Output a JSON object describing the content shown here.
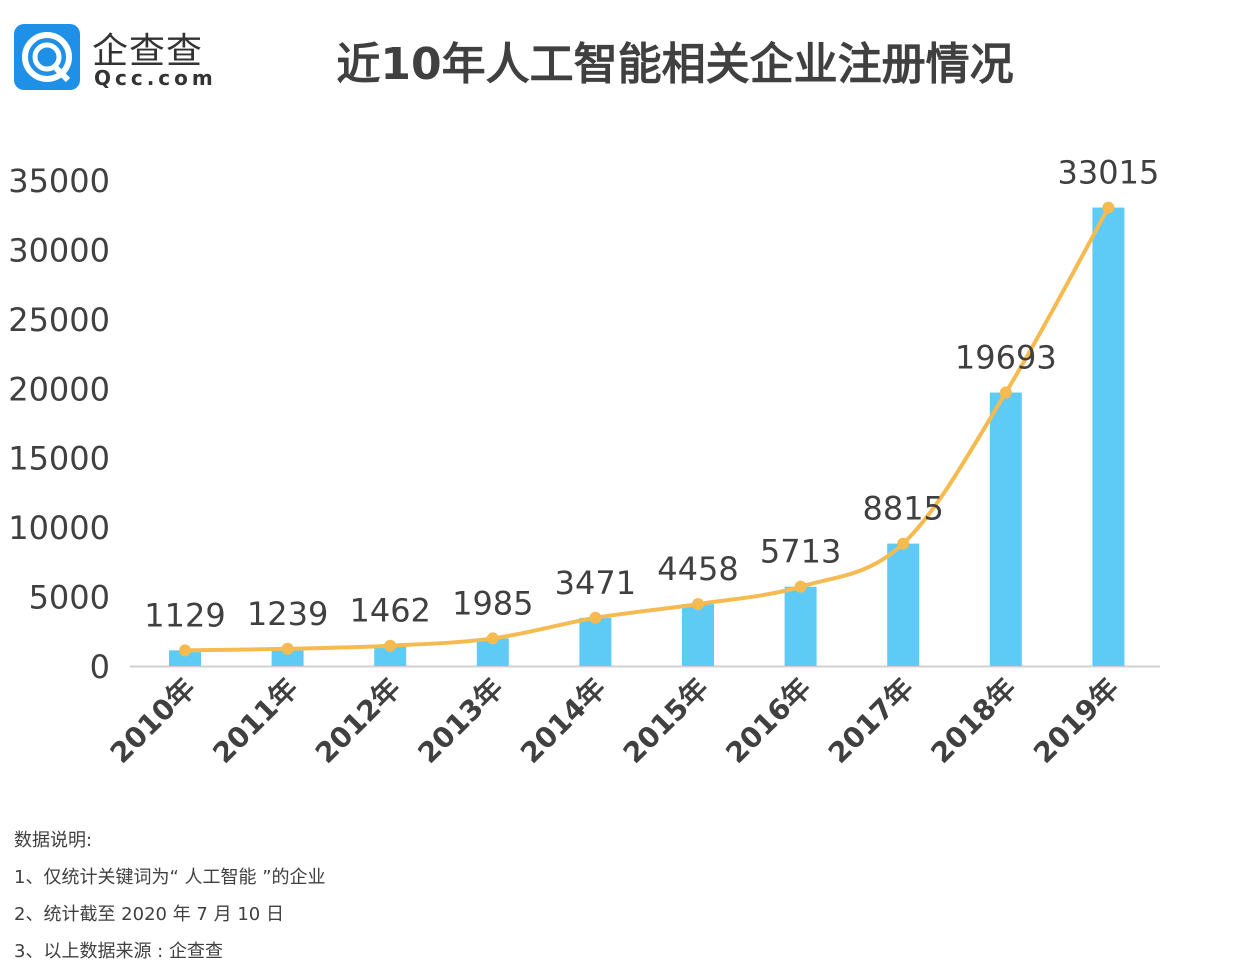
{
  "logo": {
    "text_cn": "企查查",
    "text_en": "Qcc.com"
  },
  "colors": {
    "bar": "#5ecbf7",
    "line": "#f5bb50",
    "logo": "#1e90e8"
  },
  "chart_data": {
    "type": "bar+line",
    "title": "近10年人工智能相关企业注册情况",
    "categories": [
      "2010年",
      "2011年",
      "2012年",
      "2013年",
      "2014年",
      "2015年",
      "2016年",
      "2017年",
      "2018年",
      "2019年"
    ],
    "values": [
      1129,
      1239,
      1462,
      1985,
      3471,
      4458,
      5713,
      8815,
      19693,
      33015
    ],
    "ylim": [
      0,
      35000
    ],
    "yticks": [
      "0",
      "5000",
      "10000",
      "15000",
      "20000",
      "25000",
      "30000",
      "35000"
    ],
    "grid": false,
    "legend": "none"
  },
  "notes": {
    "heading": "数据说明:",
    "items": [
      "1、仅统计关键词为“ 人工智能 ”的企业",
      "2、统计截至 2020 年 7 月 10 日",
      "3、以上数据来源 : 企查查"
    ]
  }
}
